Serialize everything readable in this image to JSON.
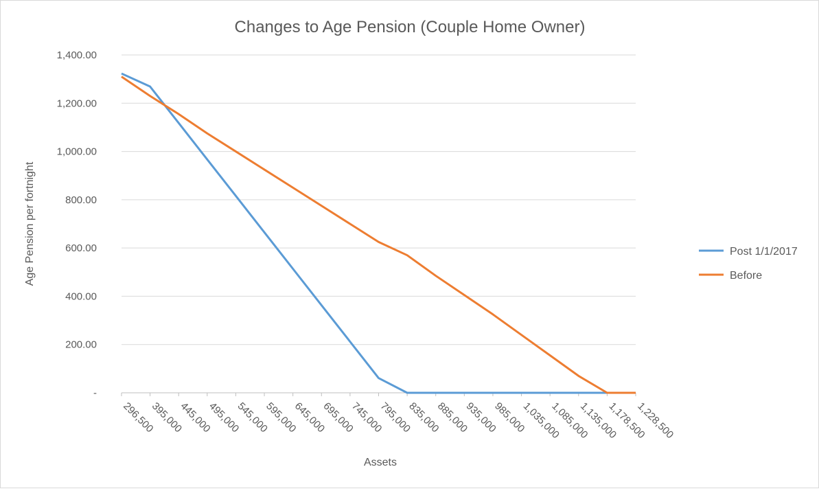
{
  "chart_data": {
    "type": "line",
    "title": "Changes to Age Pension (Couple Home Owner)",
    "xlabel": "Assets",
    "ylabel": "Age Pension per fortnight",
    "categories": [
      "296,500",
      "395,000",
      "445,000",
      "495,000",
      "545,000",
      "595,000",
      "645,000",
      "695,000",
      "745,000",
      "795,000",
      "835,000",
      "885,000",
      "935,000",
      "985,000",
      "1,035,000",
      "1,085,000",
      "1,135,000",
      "1,178,500",
      "1,228,500"
    ],
    "yticks": [
      "-",
      "200.00",
      "400.00",
      "600.00",
      "800.00",
      "1,000.00",
      "1,200.00",
      "1,400.00"
    ],
    "ylim": [
      0,
      1400
    ],
    "grid": true,
    "legend_position": "right",
    "series": [
      {
        "name": "Post 1/1/2017",
        "color": "#5B9BD5",
        "values": [
          1323,
          1269,
          1118,
          967,
          816,
          665,
          514,
          363,
          212,
          61,
          0,
          0,
          0,
          0,
          0,
          0,
          0,
          0,
          0
        ]
      },
      {
        "name": "Before",
        "color": "#ED7D31",
        "values": [
          1310,
          1230,
          1155,
          1075,
          1000,
          925,
          850,
          775,
          700,
          625,
          570,
          485,
          405,
          325,
          240,
          155,
          70,
          0,
          0
        ]
      }
    ]
  }
}
